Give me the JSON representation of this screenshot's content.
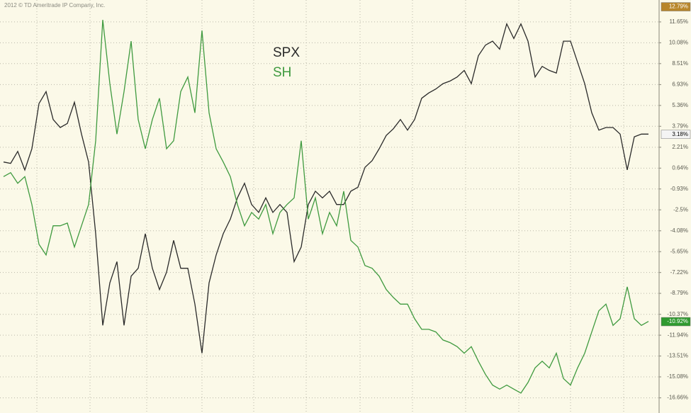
{
  "chart_data": {
    "type": "line",
    "copyright": "2012 © TD Ameritrade IP Company, Inc.",
    "categories": [
      null,
      null,
      null,
      null,
      null,
      null,
      null,
      null,
      null,
      null,
      null,
      null,
      null,
      null,
      null,
      null,
      null,
      null,
      null,
      null,
      null,
      null,
      null,
      null,
      null,
      null,
      null,
      null,
      null,
      null,
      null,
      null,
      null,
      null,
      null,
      null,
      null,
      null,
      null,
      null,
      null,
      null,
      null,
      null,
      null,
      null,
      null,
      null,
      null,
      null,
      null,
      null,
      null,
      null,
      null,
      null,
      null,
      null,
      null,
      null,
      null,
      null,
      null,
      null,
      null,
      null,
      null,
      null,
      null,
      null,
      null,
      null,
      null,
      null,
      null,
      null,
      null,
      null,
      null,
      null,
      null,
      null,
      null,
      null,
      null,
      null,
      null,
      null,
      null,
      null,
      null,
      null
    ],
    "series": [
      {
        "name": "SPX",
        "color": "#2a2a2a",
        "last_label": {
          "value": 3.18,
          "label": "3.18%",
          "background": "#f4f4f4",
          "text_color": "#000000"
        },
        "values": [
          1.1,
          1.0,
          1.9,
          0.5,
          2.1,
          5.5,
          6.4,
          4.3,
          3.7,
          4.0,
          5.6,
          3.2,
          1.1,
          -4.3,
          -11.2,
          -8.0,
          -6.4,
          -11.2,
          -7.5,
          -6.9,
          -4.3,
          -6.9,
          -8.5,
          -7.2,
          -4.8,
          -6.9,
          -6.9,
          -9.6,
          -13.3,
          -8.0,
          -5.9,
          -4.3,
          -3.2,
          -1.6,
          -0.5,
          -2.1,
          -2.7,
          -1.6,
          -2.7,
          -2.1,
          -2.7,
          -6.4,
          -5.3,
          -2.1,
          -1.1,
          -1.6,
          -1.1,
          -2.1,
          -2.1,
          -1.1,
          -0.8,
          0.7,
          1.2,
          2.1,
          3.1,
          3.6,
          4.3,
          3.5,
          4.3,
          5.9,
          6.3,
          6.6,
          7.0,
          7.2,
          7.5,
          8.0,
          7.0,
          9.1,
          9.9,
          10.2,
          9.6,
          11.5,
          10.4,
          11.5,
          10.2,
          7.5,
          8.3,
          8.0,
          7.8,
          10.2,
          10.2,
          8.6,
          7.0,
          4.8,
          3.5,
          3.7,
          3.7,
          3.2,
          0.5,
          3.0,
          3.2,
          3.2
        ]
      },
      {
        "name": "SH",
        "color": "#3f9a3f",
        "last_label": {
          "value": -10.92,
          "label": "-10.92%",
          "background": "#2f9a2f",
          "text_color": "#ffffff"
        },
        "values": [
          0.0,
          0.3,
          -0.5,
          0.0,
          -2.1,
          -5.1,
          -5.9,
          -3.7,
          -3.7,
          -3.5,
          -5.3,
          -3.7,
          -2.1,
          2.7,
          11.8,
          7.0,
          3.2,
          6.4,
          10.2,
          4.3,
          2.1,
          4.3,
          5.9,
          2.1,
          2.7,
          6.4,
          7.5,
          4.8,
          11.0,
          4.8,
          2.1,
          1.1,
          0.0,
          -2.1,
          -3.7,
          -2.7,
          -3.2,
          -2.1,
          -4.3,
          -2.7,
          -2.1,
          -1.6,
          2.7,
          -3.2,
          -1.6,
          -4.3,
          -2.7,
          -3.7,
          -1.1,
          -4.8,
          -5.3,
          -6.7,
          -6.9,
          -7.5,
          -8.5,
          -9.1,
          -9.6,
          -9.6,
          -10.7,
          -11.5,
          -11.5,
          -11.7,
          -12.3,
          -12.5,
          -12.8,
          -13.3,
          -12.8,
          -13.9,
          -14.9,
          -15.7,
          -16.0,
          -15.7,
          -16.0,
          -16.3,
          -15.5,
          -14.4,
          -13.9,
          -14.4,
          -13.3,
          -15.2,
          -15.7,
          -14.4,
          -13.3,
          -11.7,
          -10.1,
          -9.6,
          -11.2,
          -10.7,
          -8.3,
          -10.7,
          -11.2,
          -10.9
        ]
      }
    ],
    "high_label": {
      "value": 12.79,
      "label": "12.79%",
      "background": "#b8862a",
      "text_color": "#ffffff"
    },
    "ylim": [
      -17.8,
      13.3
    ],
    "yticks": [
      {
        "value": 11.65,
        "label": "11.65%"
      },
      {
        "value": 10.08,
        "label": "10.08%"
      },
      {
        "value": 8.51,
        "label": "8.51%"
      },
      {
        "value": 6.93,
        "label": "6.93%"
      },
      {
        "value": 5.36,
        "label": "5.36%"
      },
      {
        "value": 3.79,
        "label": "3.79%"
      },
      {
        "value": 2.21,
        "label": "2.21%"
      },
      {
        "value": 0.64,
        "label": "0.64%"
      },
      {
        "value": -0.93,
        "label": "-0.93%"
      },
      {
        "value": -2.5,
        "label": "-2.5%"
      },
      {
        "value": -4.08,
        "label": "-4.08%"
      },
      {
        "value": -5.65,
        "label": "-5.65%"
      },
      {
        "value": -7.22,
        "label": "-7.22%"
      },
      {
        "value": -8.79,
        "label": "-8.79%"
      },
      {
        "value": -10.37,
        "label": "-10.37%"
      },
      {
        "value": -11.94,
        "label": "-11.94%"
      },
      {
        "value": -13.51,
        "label": "-13.51%"
      },
      {
        "value": -15.08,
        "label": "-15.08%"
      },
      {
        "value": -16.66,
        "label": "-16.66%"
      }
    ],
    "grid": true,
    "background": "#fbf9e8"
  }
}
